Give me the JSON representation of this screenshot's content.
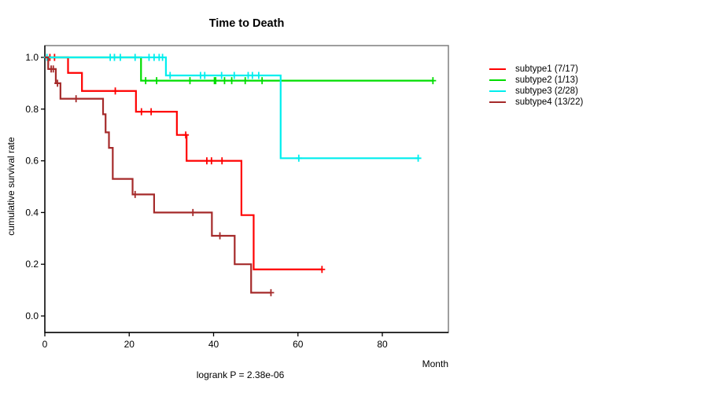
{
  "title": "Time to Death",
  "footer": {
    "stats_label": "logrank P = 2.38e-06"
  },
  "axes": {
    "x": {
      "label": "Month",
      "ticks": [
        0,
        20,
        40,
        60,
        80
      ]
    },
    "y": {
      "label": "cumulative survival rate",
      "ticks": [
        "0.0",
        "0.2",
        "0.4",
        "0.6",
        "0.8",
        "1.0"
      ]
    }
  },
  "legend": {
    "position": "right-outside",
    "items": [
      {
        "label": "subtype1 (7/17)",
        "color": "#ff0000"
      },
      {
        "label": "subtype2 (1/13)",
        "color": "#00dd00"
      },
      {
        "label": "subtype3 (2/28)",
        "color": "#00eeee"
      },
      {
        "label": "subtype4 (13/22)",
        "color": "#a52a2a"
      }
    ]
  },
  "colors": {
    "box": "#7f7f7f",
    "axis": "#000000"
  },
  "chart_data": {
    "type": "line",
    "subtype": "kaplan-meier-step",
    "title": "Time to Death",
    "xlabel": "Month",
    "ylabel": "cumulative survival rate",
    "annotation": "logrank P = 2.38e-06",
    "xlim": [
      0,
      95.7
    ],
    "ylim": [
      0,
      1.04
    ],
    "x_ticks": [
      0,
      20,
      40,
      60,
      80
    ],
    "y_ticks": [
      0.0,
      0.2,
      0.4,
      0.6,
      0.8,
      1.0
    ],
    "grid": false,
    "legend_position": "right-outside",
    "series": [
      {
        "name": "subtype1 (7/17)",
        "color": "#ff0000",
        "steps": [
          [
            0,
            1.0
          ],
          [
            5.5,
            0.94
          ],
          [
            8.8,
            0.87
          ],
          [
            21.6,
            0.79
          ],
          [
            31.3,
            0.7
          ],
          [
            33.6,
            0.6
          ],
          [
            46.6,
            0.39
          ],
          [
            49.5,
            0.18
          ]
        ],
        "end": 65.7,
        "censors": [
          [
            1.2,
            1.0
          ],
          [
            2.3,
            1.0
          ],
          [
            16.7,
            0.87
          ],
          [
            22.9,
            0.79
          ],
          [
            25.2,
            0.79
          ],
          [
            33.4,
            0.7
          ],
          [
            38.4,
            0.6
          ],
          [
            39.5,
            0.6
          ],
          [
            42.0,
            0.6
          ],
          [
            65.7,
            0.18
          ]
        ]
      },
      {
        "name": "subtype2 (1/13)",
        "color": "#00dd00",
        "steps": [
          [
            0,
            1.0
          ],
          [
            22.8,
            0.91
          ]
        ],
        "end": 92.0,
        "censors": [
          [
            23.9,
            0.91
          ],
          [
            26.5,
            0.91
          ],
          [
            34.4,
            0.91
          ],
          [
            40.2,
            0.91
          ],
          [
            40.5,
            0.91
          ],
          [
            42.6,
            0.91
          ],
          [
            44.3,
            0.91
          ],
          [
            47.5,
            0.91
          ],
          [
            51.5,
            0.91
          ],
          [
            92.0,
            0.91
          ]
        ]
      },
      {
        "name": "subtype3 (2/28)",
        "color": "#00eeee",
        "steps": [
          [
            0,
            1.0
          ],
          [
            28.7,
            0.93
          ],
          [
            55.9,
            0.61
          ]
        ],
        "end": 88.5,
        "censors": [
          [
            0.5,
            1.0
          ],
          [
            15.5,
            1.0
          ],
          [
            16.5,
            1.0
          ],
          [
            17.9,
            1.0
          ],
          [
            21.4,
            1.0
          ],
          [
            24.7,
            1.0
          ],
          [
            25.9,
            1.0
          ],
          [
            27.1,
            1.0
          ],
          [
            27.9,
            1.0
          ],
          [
            29.7,
            0.93
          ],
          [
            36.9,
            0.93
          ],
          [
            37.9,
            0.93
          ],
          [
            41.9,
            0.93
          ],
          [
            44.9,
            0.93
          ],
          [
            48.2,
            0.93
          ],
          [
            49.2,
            0.93
          ],
          [
            50.7,
            0.93
          ],
          [
            60.2,
            0.61
          ],
          [
            88.5,
            0.61
          ]
        ]
      },
      {
        "name": "subtype4 (13/22)",
        "color": "#a52a2a",
        "steps": [
          [
            0,
            1.0
          ],
          [
            0.8,
            0.955
          ],
          [
            2.6,
            0.9
          ],
          [
            3.7,
            0.84
          ],
          [
            13.8,
            0.78
          ],
          [
            14.4,
            0.71
          ],
          [
            15.2,
            0.65
          ],
          [
            16.1,
            0.53
          ],
          [
            20.8,
            0.47
          ],
          [
            25.9,
            0.4
          ],
          [
            39.6,
            0.31
          ],
          [
            45.0,
            0.2
          ],
          [
            48.9,
            0.09
          ]
        ],
        "end": 53.6,
        "censors": [
          [
            1.5,
            0.955
          ],
          [
            2.0,
            0.955
          ],
          [
            3.0,
            0.9
          ],
          [
            7.4,
            0.84
          ],
          [
            21.4,
            0.47
          ],
          [
            35.1,
            0.4
          ],
          [
            41.5,
            0.31
          ],
          [
            53.6,
            0.09
          ]
        ]
      }
    ]
  }
}
